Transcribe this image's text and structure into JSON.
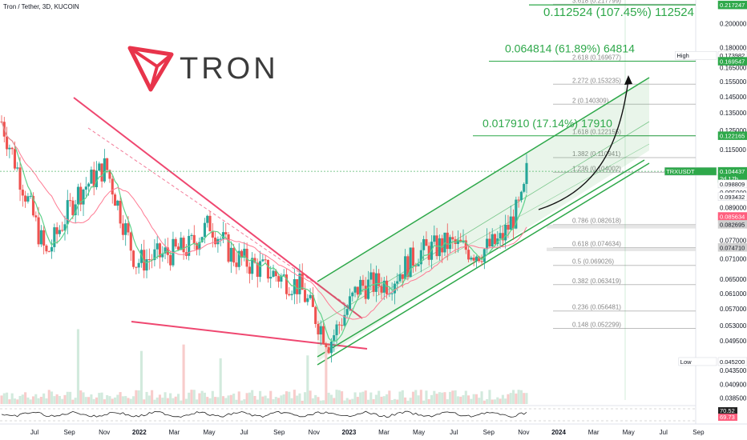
{
  "header": {
    "title": "Tron / Tether, 3D, KUCOIN"
  },
  "logo": {
    "text": "TRON",
    "color": "#e8344b"
  },
  "colors": {
    "up": "#26a69a",
    "down": "#ef5350",
    "fib_line": "#bdbdbd",
    "channel": "#2ea84a",
    "channel_fill": "rgba(76,175,80,0.12)",
    "downtrend": "#ef4770",
    "ma_fast": "#5fd28a",
    "ma_slow": "#ff7b93",
    "price_tag": "#2ea84a",
    "axis_bg": "#ffffff"
  },
  "chart_data": {
    "type": "candlestick",
    "scale": "log",
    "y_axis_ticks": [
      "0.200000",
      "0.180000",
      "0.165000",
      "0.155000",
      "0.145000",
      "0.135000",
      "0.125000",
      "0.115000",
      "0.105000",
      "0.095000",
      "0.089000",
      "0.083000",
      "0.077000",
      "0.071000",
      "0.065000",
      "0.061000",
      "0.057000",
      "0.053000",
      "0.049500",
      "0.045500",
      "0.043500",
      "0.040900",
      "0.038500"
    ],
    "x_axis_ticks": [
      "Jul",
      "Sep",
      "Nov",
      "2022",
      "Mar",
      "May",
      "Jul",
      "Sep",
      "Nov",
      "2023",
      "Mar",
      "May",
      "Jul",
      "Sep",
      "Nov",
      "2024",
      "Mar",
      "May",
      "Jul",
      "Sep"
    ],
    "y_range": [
      0.0375,
      0.222
    ],
    "fib_levels": [
      {
        "label": "3.618 (0.217799)",
        "value": 0.217799
      },
      {
        "label": "2.618 (0.169677)",
        "value": 0.169677
      },
      {
        "label": "2.272 (0.153235)",
        "value": 0.153235
      },
      {
        "label": "2 (0.140309)",
        "value": 0.140309
      },
      {
        "label": "1.618 (0.122155)",
        "value": 0.122155
      },
      {
        "label": "1.382 (0.110941)",
        "value": 0.110941
      },
      {
        "label": "1.236 (0.104002)",
        "value": 0.104002
      },
      {
        "label": "0.786 (0.082618)",
        "value": 0.082618
      },
      {
        "label": "0.618 (0.074634)",
        "value": 0.074634
      },
      {
        "label": "0.5 (0.069026)",
        "value": 0.069026
      },
      {
        "label": "0.382 (0.063419)",
        "value": 0.063419
      },
      {
        "label": "0.236 (0.056481)",
        "value": 0.056481
      },
      {
        "label": "0.148 (0.052299)",
        "value": 0.052299
      }
    ],
    "target_annotations": [
      {
        "text": "0.112524 (107.45%) 112524",
        "value": 0.2172
      },
      {
        "text": "0.064814 (61.89%) 64814",
        "value": 0.1696
      },
      {
        "text": "0.017910 (17.14%) 17910",
        "value": 0.1221
      }
    ],
    "price_tags": [
      {
        "label": "",
        "value": "0.217247",
        "kind": "green"
      },
      {
        "label": "High",
        "value": "0.173982",
        "kind": "plain"
      },
      {
        "label": "",
        "value": "0.169547",
        "kind": "green"
      },
      {
        "label": "",
        "value": "0.122165",
        "kind": "green"
      },
      {
        "label": "TRXUSDT",
        "value": "0.104437",
        "kind": "green"
      },
      {
        "label": "",
        "value": "2d 17h",
        "kind": "green-small"
      },
      {
        "label": "",
        "value": "0.098809",
        "kind": "plain"
      },
      {
        "label": "",
        "value": "0.093432",
        "kind": "plain"
      },
      {
        "label": "",
        "value": "0.085634",
        "kind": "red"
      },
      {
        "label": "",
        "value": "0.082695",
        "kind": "gray"
      },
      {
        "label": "",
        "value": "0.074710",
        "kind": "gray"
      },
      {
        "label": "Low",
        "value": "0.045200",
        "kind": "plain"
      }
    ],
    "rsi_tags": [
      {
        "value": "70.52",
        "kind": "dark"
      },
      {
        "value": "69.73",
        "kind": "red"
      }
    ],
    "price_path_log_hint": [
      [
        0.0,
        0.13
      ],
      [
        0.06,
        0.072
      ],
      [
        0.1,
        0.094
      ],
      [
        0.14,
        0.107
      ],
      [
        0.18,
        0.07
      ],
      [
        0.25,
        0.0745
      ],
      [
        0.28,
        0.083
      ],
      [
        0.31,
        0.072
      ],
      [
        0.36,
        0.067
      ],
      [
        0.4,
        0.063
      ],
      [
        0.44,
        0.049
      ],
      [
        0.48,
        0.063
      ],
      [
        0.52,
        0.064
      ],
      [
        0.56,
        0.073
      ],
      [
        0.6,
        0.076
      ],
      [
        0.64,
        0.073
      ],
      [
        0.67,
        0.077
      ],
      [
        0.7,
        0.092
      ],
      [
        0.705,
        0.104
      ]
    ]
  }
}
